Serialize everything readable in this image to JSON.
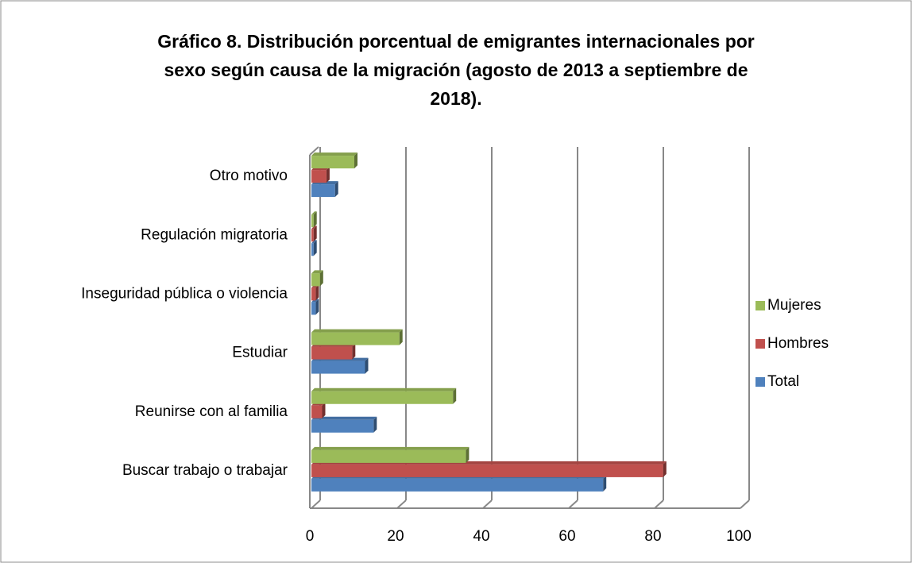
{
  "chart_data": {
    "type": "bar",
    "orientation": "horizontal",
    "title": "Gráfico 8. Distribución porcentual de emigrantes internacionales por sexo según causa de la migración (agosto de 2013 a septiembre de 2018).",
    "categories": [
      "Buscar trabajo o trabajar",
      "Reunirse con al familia",
      "Estudiar",
      "Inseguridad pública o violencia",
      "Regulación migratoria",
      "Otro motivo"
    ],
    "series": [
      {
        "name": "Total",
        "color": "#4f81bd",
        "values": [
          68,
          14.5,
          12.5,
          1,
          0.5,
          5.5
        ]
      },
      {
        "name": "Hombres",
        "color": "#c0504d",
        "values": [
          82,
          2.5,
          9.5,
          1,
          0.5,
          3.5
        ]
      },
      {
        "name": "Mujeres",
        "color": "#9bbb59",
        "values": [
          36,
          33,
          20.5,
          2,
          0.5,
          10
        ]
      }
    ],
    "xlim": [
      0,
      100
    ],
    "xticks": [
      0,
      20,
      40,
      60,
      80,
      100
    ],
    "grid": true,
    "legend": "right"
  }
}
